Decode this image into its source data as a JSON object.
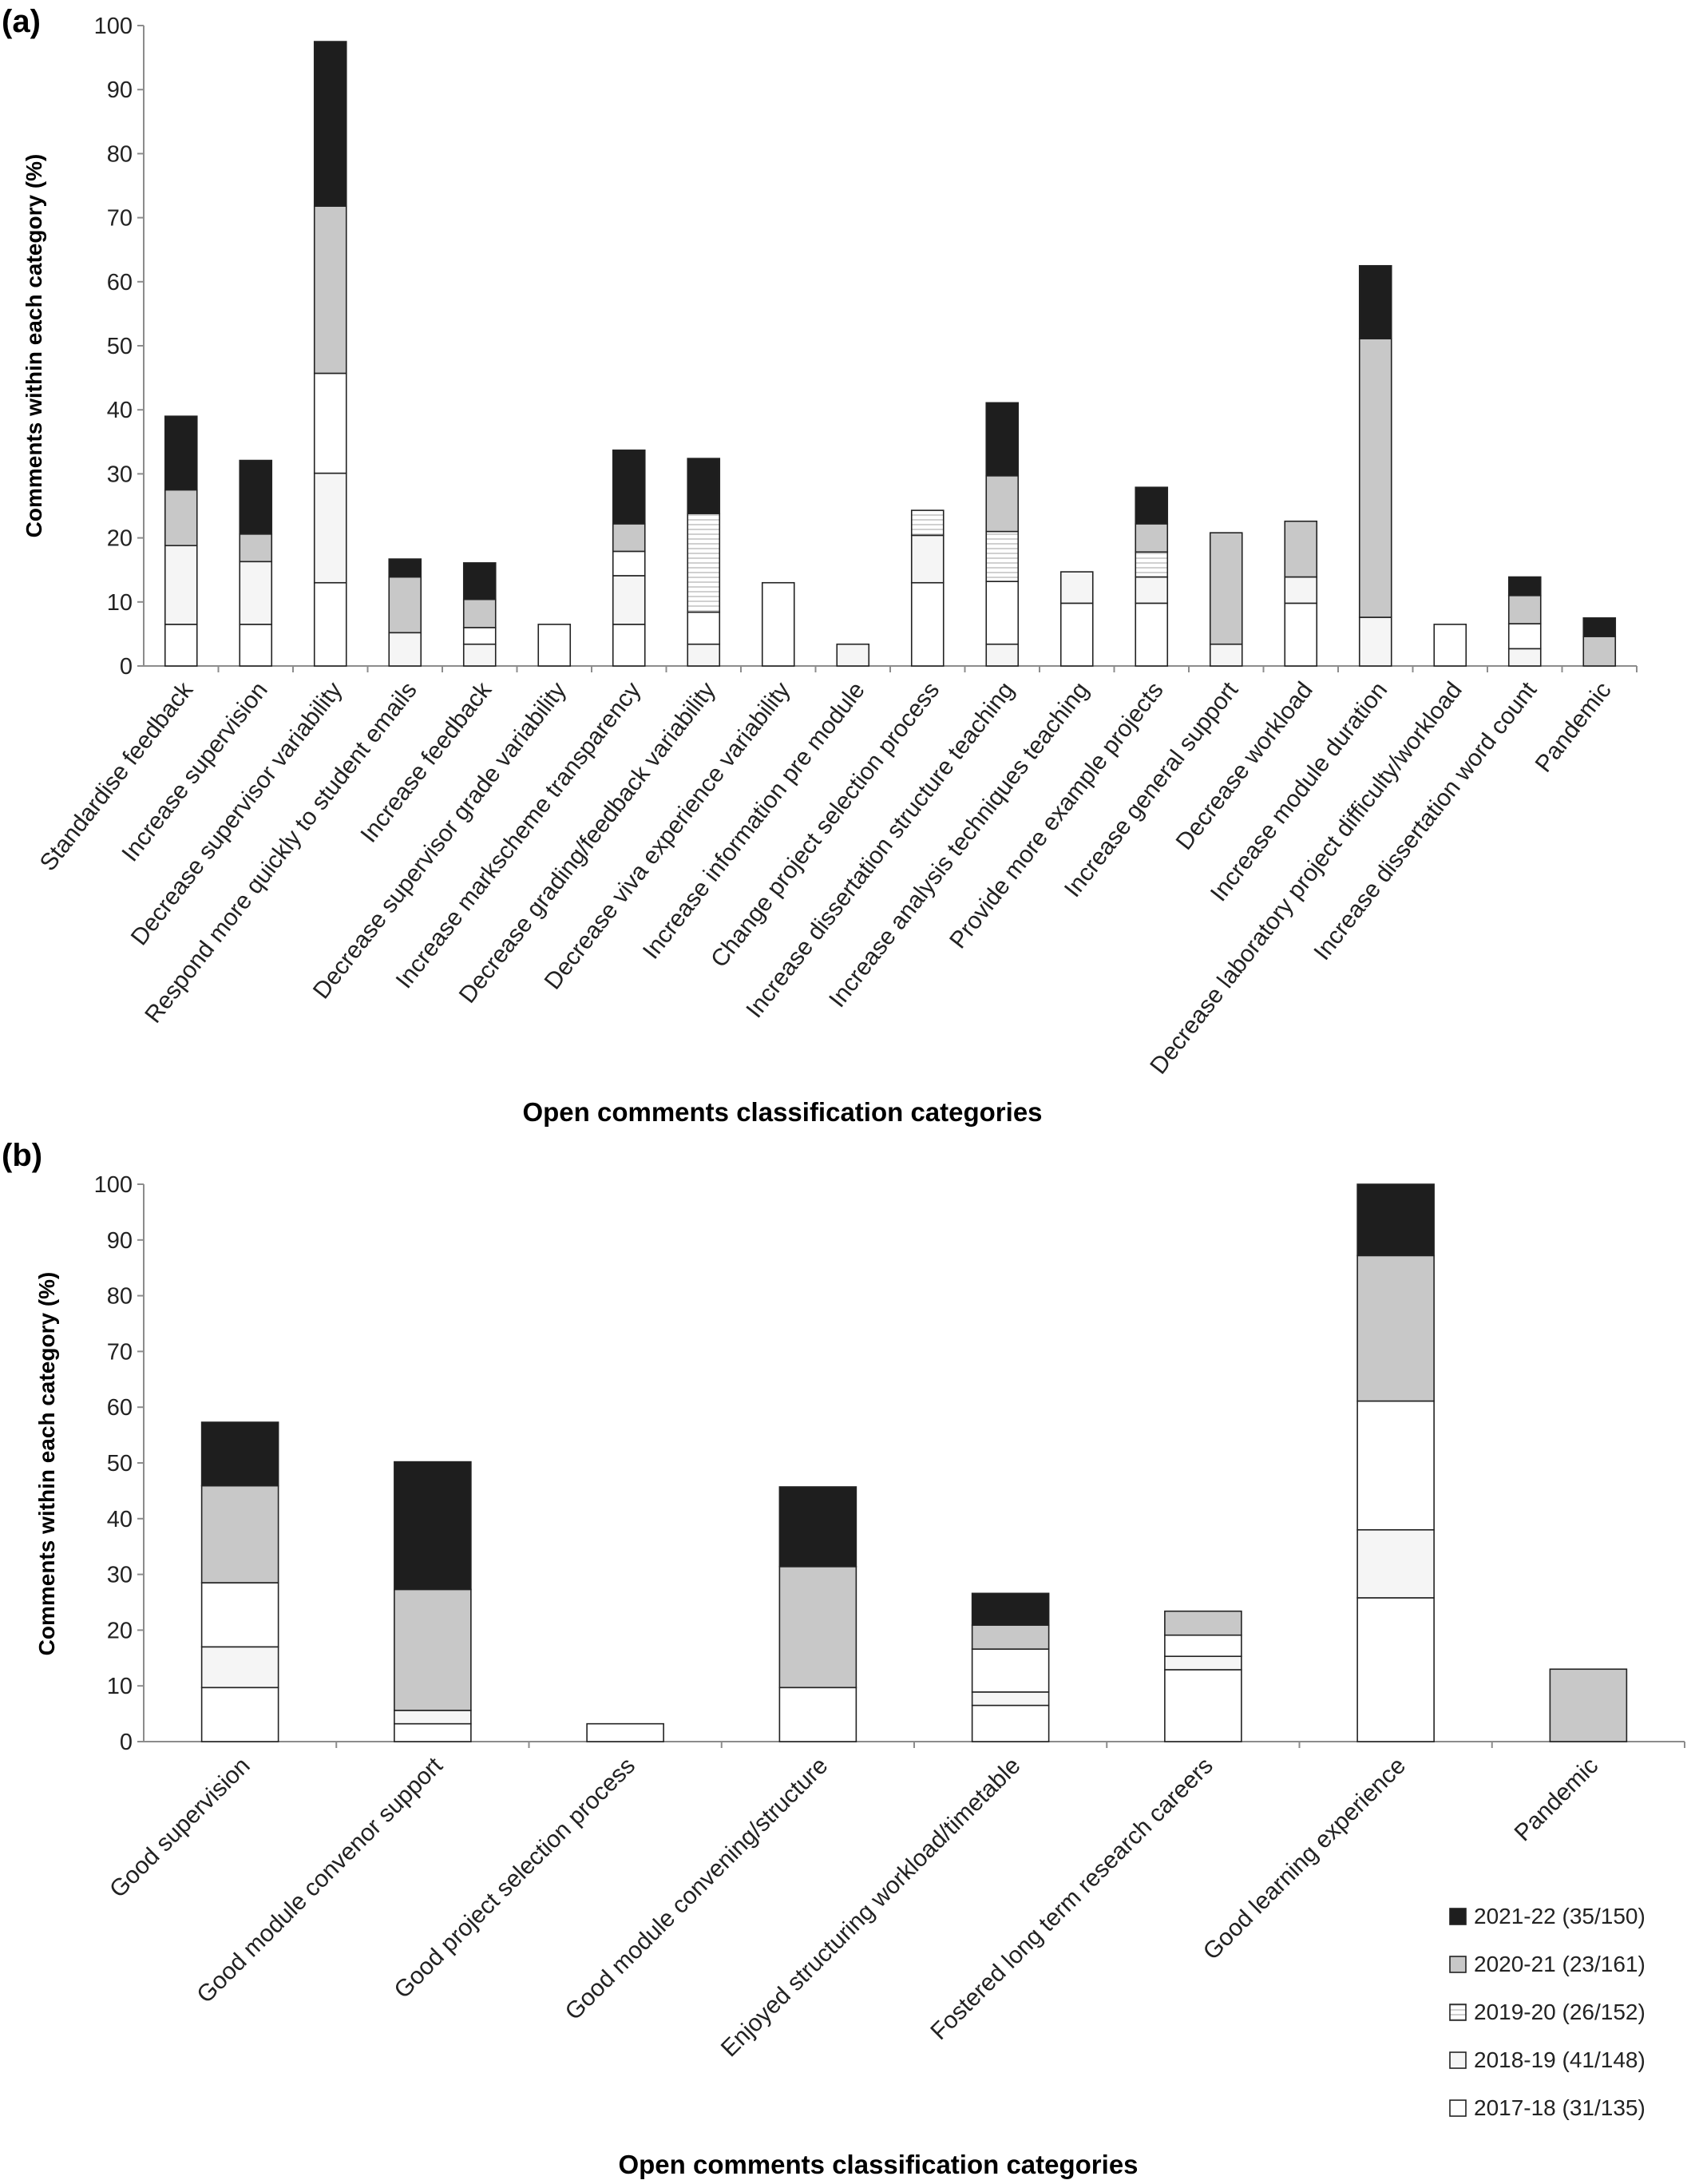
{
  "colors": {
    "2021-22": "#1e1e1e",
    "2020-21": "#c8c8c8",
    "2019-20": "#ffffff (horizontal hatch)",
    "2018-19": "#f5f5f5",
    "2017-18": "#ffffff",
    "axis": "#8c8c8c"
  },
  "legend": {
    "placement": "bottom-right of panel (b)",
    "items": [
      {
        "key": "2021-22",
        "label": "2021-22 (35/150)"
      },
      {
        "key": "2020-21",
        "label": "2020-21 (23/161)"
      },
      {
        "key": "2019-20",
        "label": "2019-20 (26/152)"
      },
      {
        "key": "2018-19",
        "label": "2018-19 (41/148)"
      },
      {
        "key": "2017-18",
        "label": "2017-18 (31/135)"
      }
    ]
  },
  "chart_data": [
    {
      "panel": "(a)",
      "type": "bar",
      "stacked": true,
      "ylabel": "Comments within each category (%)",
      "xlabel": "Open comments classification categories",
      "ylim": [
        0,
        100
      ],
      "yticks": [
        0,
        10,
        20,
        30,
        40,
        50,
        60,
        70,
        80,
        90,
        100
      ],
      "grid": false,
      "categories": [
        "Standardise feedback",
        "Increase supervision",
        "Decrease supervisor variability",
        "Respond more quickly to student emails",
        "Increase feedback",
        "Decrease supervisor grade variability",
        "Increase markscheme transparency",
        "Decrease grading/feedback variability",
        "Decrease viva experience variability",
        "Increase information pre module",
        "Change project selection process",
        "Increase dissertation structure teaching",
        "Increase analysis techniques teaching",
        "Provide more example projects",
        "Increase general support",
        "Decrease workload",
        "Increase module duration",
        "Decrease laboratory project difficulty/workload",
        "Increase dissertation word count",
        "Pandemic"
      ],
      "series": [
        {
          "key": "2017-18",
          "values": [
            6.5,
            6.5,
            13.0,
            0,
            0,
            6.5,
            6.5,
            0,
            13.0,
            0,
            13.0,
            0,
            9.8,
            9.8,
            0,
            9.8,
            0,
            6.5,
            0,
            0
          ]
        },
        {
          "key": "2018-19",
          "values": [
            12.3,
            9.8,
            17.1,
            5.2,
            3.4,
            0,
            7.6,
            3.4,
            0,
            3.4,
            7.4,
            3.4,
            4.9,
            4.1,
            3.4,
            4.1,
            7.6,
            0,
            2.7,
            0
          ]
        },
        {
          "key": "2019-20",
          "values": [
            0,
            0,
            15.6,
            0,
            2.6,
            0,
            3.8,
            5.0,
            0,
            0,
            0,
            9.8,
            0,
            0,
            0,
            0,
            0,
            0,
            3.9,
            0
          ]
        },
        {
          "key": "2019-20-hatched",
          "values": [
            0,
            0,
            0,
            0,
            0,
            0,
            0,
            15.4,
            0,
            0,
            3.9,
            7.8,
            0,
            3.9,
            0,
            0,
            0,
            0,
            0,
            0
          ]
        },
        {
          "key": "2020-21",
          "values": [
            8.7,
            4.3,
            26.1,
            8.7,
            4.4,
            0,
            4.3,
            0,
            0,
            0,
            0,
            8.7,
            0,
            4.4,
            17.4,
            8.7,
            43.5,
            0,
            4.4,
            4.6
          ]
        },
        {
          "key": "2021-22",
          "values": [
            11.5,
            11.5,
            25.7,
            2.8,
            5.7,
            0,
            11.5,
            8.6,
            0,
            0,
            0,
            11.4,
            0,
            5.7,
            0,
            0,
            11.4,
            0,
            2.9,
            2.9
          ]
        }
      ]
    },
    {
      "panel": "(b)",
      "type": "bar",
      "stacked": true,
      "ylabel": "Comments within each category (%)",
      "xlabel": "Open comments classification categories",
      "ylim": [
        0,
        100
      ],
      "yticks": [
        0,
        10,
        20,
        30,
        40,
        50,
        60,
        70,
        80,
        90,
        100
      ],
      "grid": false,
      "categories": [
        "Good supervision",
        "Good module convenor support",
        "Good project selection process",
        "Good module convening/structure",
        "Enjoyed structuring workload/timetable",
        "Fostered long term research careers",
        "Good learning experience",
        "Pandemic"
      ],
      "series": [
        {
          "key": "2017-18",
          "values": [
            9.7,
            3.2,
            3.2,
            9.7,
            6.5,
            12.9,
            25.8,
            0
          ]
        },
        {
          "key": "2018-19",
          "values": [
            7.3,
            2.4,
            0,
            0,
            2.4,
            2.4,
            12.2,
            0
          ]
        },
        {
          "key": "2019-20",
          "values": [
            11.5,
            0,
            0,
            0,
            7.7,
            3.8,
            23.1,
            0
          ]
        },
        {
          "key": "2020-21",
          "values": [
            17.4,
            21.7,
            0,
            21.7,
            4.3,
            4.3,
            26.1,
            13.0
          ]
        },
        {
          "key": "2021-22",
          "values": [
            11.4,
            22.9,
            0,
            14.3,
            5.7,
            0,
            12.8,
            0
          ]
        }
      ]
    }
  ]
}
